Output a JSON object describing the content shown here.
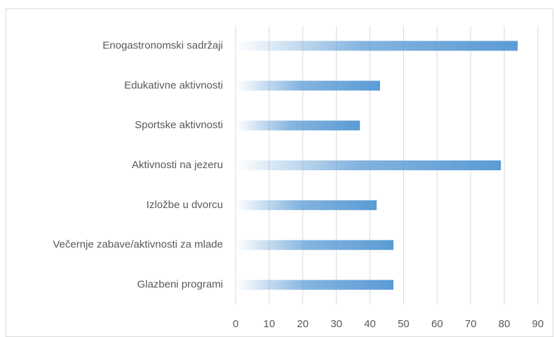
{
  "chart_data": {
    "type": "barh",
    "categories": [
      "Enogastronomski sadržaji",
      "Edukativne aktivnosti",
      "Sportske aktivnosti",
      "Aktivnosti na jezeru",
      "Izložbe u dvorcu",
      "Večernje zabave/aktivnosti za mlade",
      "Glazbeni programi"
    ],
    "values": [
      84,
      43,
      37,
      79,
      42,
      47,
      47
    ],
    "color": "#5b9bd5",
    "xlim": [
      0,
      90
    ],
    "xticks": [
      0,
      10,
      20,
      30,
      40,
      50,
      60,
      70,
      80,
      90
    ],
    "grid": true
  }
}
